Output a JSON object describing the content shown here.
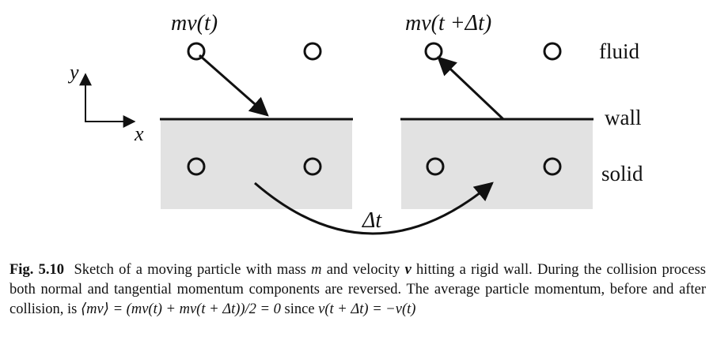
{
  "figure": {
    "label_mv_before": "mv(t)",
    "label_mv_after": "mv(t +Δt)",
    "label_fluid": "fluid",
    "label_wall": "wall",
    "label_solid": "solid",
    "label_dt": "Δt",
    "axis_x": "x",
    "axis_y": "y"
  },
  "caption": {
    "number": "Fig. 5.10",
    "text_1": "Sketch of a moving particle with mass ",
    "m": "m",
    "text_2": " and velocity ",
    "v": "v",
    "text_3": " hitting a rigid wall. During the collision process both normal and tangential momentum components are reversed. The average particle momentum, before and after collision, is ",
    "avg": "⟨mv⟩ = (mv(t) + mv(t + Δt))/2 = 0",
    "text_4": " since ",
    "relation": "v(t + Δt) = −v(t)"
  }
}
